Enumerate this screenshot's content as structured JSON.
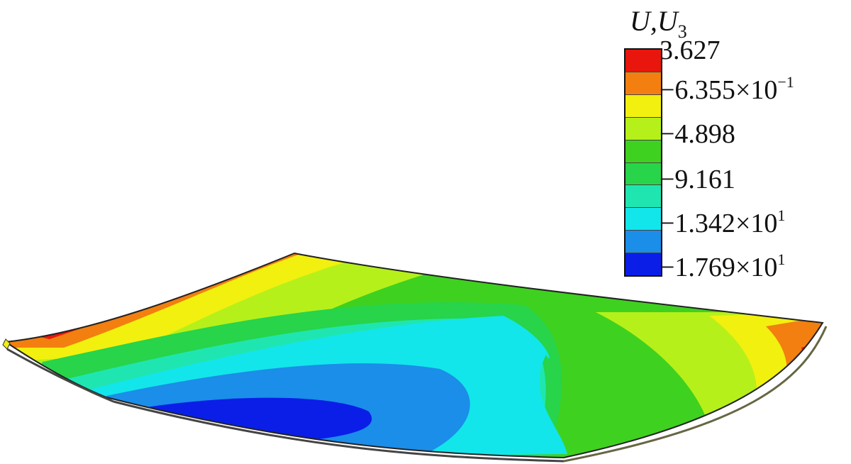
{
  "legend": {
    "title_main": "U",
    "title_sep": ",",
    "title_sub_base": "U",
    "title_sub": "3",
    "colors": [
      "#e8160c",
      "#f27f0f",
      "#f2f00e",
      "#b6f01a",
      "#3fd11f",
      "#27d44a",
      "#1fe6b0",
      "#12e6ea",
      "#1a8ee8",
      "#0a1ee8"
    ],
    "labels": [
      {
        "mantissa": "3.627",
        "times": "",
        "base": "",
        "exp": ""
      },
      {
        "mantissa": "−6.355",
        "times": "×",
        "base": "10",
        "exp": "−1"
      },
      {
        "mantissa": "−4.898",
        "times": "",
        "base": "",
        "exp": ""
      },
      {
        "mantissa": "−9.161",
        "times": "",
        "base": "",
        "exp": ""
      },
      {
        "mantissa": "−1.342",
        "times": "×",
        "base": "10",
        "exp": "1"
      },
      {
        "mantissa": "−1.769",
        "times": "×",
        "base": "10",
        "exp": "1"
      }
    ]
  },
  "plate": {
    "colors": {
      "red": "#e8160c",
      "orange": "#f27f0f",
      "yellow": "#f2f00e",
      "lime": "#b6f01a",
      "green": "#3fd11f",
      "green2": "#27d44a",
      "teal": "#1fe6b0",
      "cyan": "#12e6ea",
      "blue": "#1a8ee8",
      "deepblue": "#0a1ee8"
    }
  }
}
